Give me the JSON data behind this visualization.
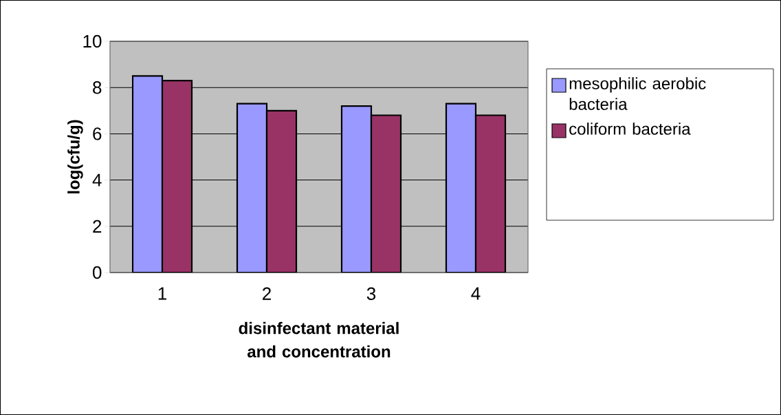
{
  "chart_data": {
    "type": "bar",
    "xlabel": "disinfectant material and concentration",
    "ylabel": "log(cfu/g)",
    "categories": [
      "1",
      "2",
      "3",
      "4"
    ],
    "series": [
      {
        "name": "mesophilic aerobic bacteria",
        "color": "#9999ff",
        "values": [
          8.5,
          7.3,
          7.2,
          7.3
        ]
      },
      {
        "name": "coliform bacteria",
        "color": "#993366",
        "values": [
          8.3,
          7.0,
          6.8,
          6.8
        ]
      }
    ],
    "ylim": [
      0,
      10
    ],
    "yticks": [
      0,
      2,
      4,
      6,
      8,
      10
    ],
    "grid": "y",
    "legend": "right"
  }
}
